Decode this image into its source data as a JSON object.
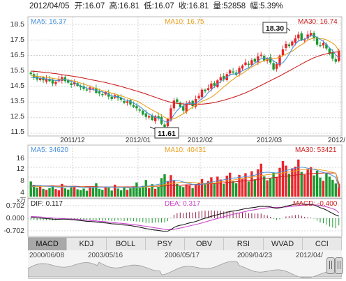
{
  "header": {
    "date": "2012/04/05",
    "open_label": "开:",
    "open": "16.07",
    "high_label": "高:",
    "high": "16.81",
    "low_label": "低:",
    "low": "16.07",
    "close_label": "收:",
    "close": "16.81",
    "volume_label": "量:",
    "volume": "52858",
    "change_label": "幅:",
    "change": "5.39%"
  },
  "price_panel": {
    "ma5_label": "MA5: 16.37",
    "ma10_label": "MA10: 16.75",
    "ma30_label": "MA30: 16.74",
    "high_callout": "18.30",
    "low_callout": "11.61",
    "y_ticks": [
      "18.5",
      "17.5",
      "16.5",
      "15.5",
      "14.5",
      "13.5",
      "12.5",
      "11.5"
    ],
    "x_ticks": [
      "2011/12",
      "2012/01",
      "2012/02",
      "2012/03",
      "2012/"
    ]
  },
  "volume_panel": {
    "ma5_label": "MA5: 34620",
    "ma10_label": "MA10: 40431",
    "ma30_label": "MA30: 53421",
    "y_ticks": [
      "16",
      "12",
      "8",
      "4"
    ],
    "unit": "x万"
  },
  "macd_panel": {
    "dif_label": "DIF: 0.117",
    "dea_label": "DEA: 0.317",
    "macd_label": "MACD: -0.400",
    "y_ticks": [
      "0.702",
      "0.000",
      "-0.702"
    ]
  },
  "tabs": [
    "MACD",
    "KDJ",
    "BOLL",
    "PSY",
    "OBV",
    "RSI",
    "WVAD",
    "CCI"
  ],
  "active_tab": 0,
  "navigator": {
    "dates": [
      "2000/06/08",
      "2003/05/16",
      "2006/05/17",
      "2009/04/23",
      "2012/04/"
    ]
  },
  "colors": {
    "up": "#e8262b",
    "down": "#1a9a2e",
    "ma5": "#4a90d9",
    "ma10": "#e8a020",
    "ma30": "#cc2222",
    "dif": "#1a1a1a",
    "dea": "#cc44cc",
    "grid": "#c8c8c8"
  },
  "chart_data": [
    {
      "type": "candlestick",
      "title": "",
      "xlabel": "",
      "ylabel": "",
      "ylim": [
        11.5,
        18.6
      ],
      "x_tick_labels": [
        "2011/12",
        "2012/01",
        "2012/02",
        "2012/03",
        "2012/"
      ],
      "y_ticks": [
        11.5,
        12.5,
        13.5,
        14.5,
        15.5,
        16.5,
        17.5,
        18.5
      ],
      "annotations": [
        {
          "label": "18.30",
          "value": 18.3
        },
        {
          "label": "11.61",
          "value": 11.61
        }
      ],
      "close": [
        15.3,
        15.1,
        14.95,
        15.05,
        14.9,
        15.0,
        14.85,
        14.7,
        14.8,
        14.95,
        15.1,
        14.85,
        14.75,
        14.6,
        14.8,
        14.55,
        14.45,
        14.35,
        14.25,
        14.45,
        14.4,
        14.1,
        14.05,
        13.95,
        14.15,
        13.85,
        13.7,
        13.95,
        13.75,
        13.65,
        13.45,
        13.55,
        13.35,
        13.2,
        13.1,
        12.95,
        12.7,
        12.55,
        12.6,
        12.35,
        12.6,
        12.45,
        12.1,
        11.9,
        12.4,
        13.1,
        13.6,
        13.5,
        13.2,
        12.95,
        13.4,
        13.5,
        13.25,
        13.7,
        13.9,
        14.3,
        14.2,
        14.4,
        14.7,
        14.55,
        14.9,
        15.1,
        14.95,
        15.3,
        15.55,
        15.4,
        15.25,
        15.7,
        15.85,
        16.05,
        15.9,
        16.2,
        16.1,
        16.45,
        16.55,
        16.15,
        16.3,
        16.05,
        15.6,
        15.95,
        16.5,
        16.9,
        17.25,
        17.1,
        17.4,
        17.6,
        17.85,
        17.5,
        17.55,
        17.85,
        17.95,
        17.6,
        17.2,
        17.1,
        17.3,
        16.95,
        16.6,
        16.3,
        16.1,
        16.81
      ],
      "ma5": [
        15.1,
        15.08,
        15.06,
        15.04,
        15.02,
        15.0,
        14.97,
        14.93,
        14.89,
        14.9,
        14.93,
        14.94,
        14.91,
        14.83,
        14.74,
        14.64,
        14.55,
        14.47,
        14.39,
        14.34,
        14.3,
        14.26,
        14.21,
        14.16,
        14.09,
        14.0,
        13.9,
        13.86,
        13.83,
        13.8,
        13.66,
        13.61,
        13.54,
        13.45,
        13.32,
        13.22,
        13.05,
        12.88,
        12.73,
        12.62,
        12.51,
        12.48,
        12.36,
        12.26,
        12.2,
        12.35,
        12.7,
        12.95,
        13.16,
        13.23,
        13.4,
        13.43,
        13.38,
        13.41,
        13.56,
        13.72,
        13.86,
        14.12,
        14.28,
        14.5,
        14.66,
        14.82,
        14.98,
        15.1,
        15.28,
        15.3,
        15.32,
        15.4,
        15.52,
        15.62,
        15.7,
        15.86,
        16.0,
        16.15,
        16.3,
        16.34,
        16.32,
        16.3,
        16.16,
        15.99,
        15.99,
        16.03,
        16.28,
        16.58,
        16.94,
        17.23,
        17.43,
        17.49,
        17.53,
        17.68,
        17.79,
        17.77,
        17.66,
        17.53,
        17.42,
        17.2,
        16.99,
        16.8,
        16.54,
        16.37
      ],
      "ma10": [
        15.2,
        15.18,
        15.16,
        15.14,
        15.12,
        15.1,
        15.07,
        15.03,
        15.0,
        14.98,
        14.96,
        14.94,
        14.92,
        14.89,
        14.85,
        14.79,
        14.72,
        14.66,
        14.59,
        14.52,
        14.44,
        14.38,
        14.31,
        14.24,
        14.2,
        14.14,
        14.07,
        14.02,
        13.97,
        13.91,
        13.84,
        13.76,
        13.7,
        13.64,
        13.57,
        13.48,
        13.35,
        13.22,
        13.11,
        12.99,
        12.89,
        12.77,
        12.64,
        12.52,
        12.44,
        12.4,
        12.43,
        12.52,
        12.64,
        12.75,
        12.87,
        13.05,
        13.17,
        13.3,
        13.42,
        13.55,
        13.62,
        13.71,
        13.82,
        13.96,
        14.12,
        14.3,
        14.49,
        14.63,
        14.81,
        14.96,
        15.11,
        15.23,
        15.34,
        15.49,
        15.63,
        15.75,
        15.87,
        16.0,
        16.09,
        16.17,
        16.24,
        16.31,
        16.33,
        16.33,
        16.39,
        16.49,
        16.58,
        16.68,
        16.77,
        16.92,
        17.07,
        17.2,
        17.34,
        17.49,
        17.56,
        17.62,
        17.62,
        17.58,
        17.57,
        17.51,
        17.4,
        17.29,
        17.13,
        16.75
      ],
      "ma30": [
        15.5,
        15.48,
        15.46,
        15.44,
        15.42,
        15.4,
        15.38,
        15.35,
        15.33,
        15.3,
        15.27,
        15.24,
        15.21,
        15.18,
        15.15,
        15.12,
        15.08,
        15.04,
        15.0,
        14.96,
        14.92,
        14.88,
        14.84,
        14.8,
        14.76,
        14.71,
        14.66,
        14.61,
        14.56,
        14.51,
        14.45,
        14.39,
        14.33,
        14.27,
        14.21,
        14.15,
        14.09,
        14.02,
        13.95,
        13.88,
        13.81,
        13.74,
        13.67,
        13.6,
        13.54,
        13.49,
        13.45,
        13.42,
        13.4,
        13.38,
        13.37,
        13.36,
        13.35,
        13.35,
        13.36,
        13.37,
        13.39,
        13.41,
        13.44,
        13.48,
        13.52,
        13.57,
        13.62,
        13.68,
        13.74,
        13.8,
        13.87,
        13.94,
        14.02,
        14.1,
        14.19,
        14.28,
        14.38,
        14.48,
        14.58,
        14.68,
        14.78,
        14.88,
        14.98,
        15.08,
        15.18,
        15.29,
        15.4,
        15.51,
        15.62,
        15.73,
        15.84,
        15.95,
        16.06,
        16.16,
        16.26,
        16.35,
        16.43,
        16.5,
        16.56,
        16.61,
        16.65,
        16.69,
        16.72,
        16.74
      ]
    },
    {
      "type": "bar",
      "title": "",
      "unit": "x万",
      "ylim": [
        0,
        16
      ],
      "y_ticks": [
        4,
        8,
        12,
        16
      ],
      "values": [
        6.2,
        4.8,
        3.6,
        4.1,
        3.2,
        2.8,
        3.5,
        4.6,
        3.1,
        2.6,
        5.2,
        3.4,
        2.9,
        3.8,
        4.4,
        3.0,
        2.7,
        3.3,
        2.4,
        4.0,
        3.6,
        5.5,
        3.2,
        2.8,
        4.1,
        3.7,
        2.5,
        4.9,
        3.3,
        2.6,
        3.9,
        2.8,
        3.4,
        4.2,
        5.8,
        3.6,
        4.4,
        6.8,
        3.5,
        5.1,
        3.2,
        4.0,
        7.6,
        9.2,
        6.4,
        8.8,
        6.5,
        5.2,
        4.3,
        3.9,
        5.0,
        4.6,
        3.5,
        4.8,
        5.6,
        7.2,
        5.0,
        6.4,
        7.9,
        5.3,
        8.2,
        7.0,
        5.2,
        8.6,
        9.8,
        6.3,
        5.5,
        8.9,
        7.4,
        9.6,
        6.2,
        10.4,
        7.1,
        11.2,
        13.5,
        8.3,
        6.7,
        7.4,
        9.9,
        8.1,
        11.8,
        14.6,
        12.7,
        9.4,
        11.6,
        12.3,
        15.2,
        10.1,
        9.0,
        11.3,
        12.1,
        8.7,
        10.6,
        7.8,
        6.5,
        9.8,
        8.2,
        6.9,
        5.4,
        5.3
      ],
      "ma5": [
        4.2,
        4.3,
        4.4,
        4.5,
        4.4,
        4.3,
        4.2,
        4.1,
        4.0,
        3.9,
        3.9,
        4.0,
        4.0,
        4.1,
        4.1,
        4.0,
        3.9,
        3.8,
        3.7,
        3.8,
        3.8,
        3.9,
        3.9,
        3.9,
        4.0,
        4.0,
        3.9,
        3.9,
        3.8,
        3.8,
        3.8,
        3.7,
        3.7,
        3.8,
        3.9,
        4.0,
        4.1,
        4.3,
        4.4,
        4.6,
        4.8,
        5.0,
        5.4,
        5.9,
        6.2,
        6.5,
        6.7,
        6.6,
        6.4,
        6.0,
        5.6,
        5.3,
        5.0,
        4.9,
        4.9,
        5.1,
        5.3,
        5.6,
        5.9,
        6.2,
        6.5,
        6.7,
        6.9,
        7.1,
        7.4,
        7.6,
        7.7,
        7.9,
        8.0,
        8.2,
        8.4,
        8.6,
        8.8,
        9.2,
        9.7,
        9.9,
        10.0,
        9.9,
        9.8,
        9.7,
        9.9,
        10.3,
        10.7,
        11.0,
        11.3,
        11.6,
        12.0,
        12.1,
        11.9,
        11.6,
        11.4,
        11.2,
        10.8,
        10.3,
        9.9,
        9.6,
        9.2,
        8.6,
        7.9,
        3.5
      ],
      "ma10": [
        4.0,
        4.1,
        4.1,
        4.2,
        4.2,
        4.2,
        4.2,
        4.2,
        4.1,
        4.1,
        4.1,
        4.1,
        4.1,
        4.0,
        4.0,
        4.0,
        4.0,
        4.0,
        3.9,
        3.9,
        3.9,
        3.9,
        3.9,
        3.9,
        3.9,
        3.9,
        3.9,
        3.9,
        3.9,
        3.9,
        3.9,
        3.8,
        3.8,
        3.8,
        3.8,
        3.9,
        3.9,
        4.0,
        4.1,
        4.2,
        4.3,
        4.5,
        4.7,
        4.9,
        5.1,
        5.3,
        5.5,
        5.7,
        5.8,
        5.9,
        5.9,
        5.9,
        5.8,
        5.7,
        5.6,
        5.5,
        5.4,
        5.4,
        5.5,
        5.6,
        5.8,
        6.0,
        6.2,
        6.4,
        6.6,
        6.8,
        7.0,
        7.2,
        7.4,
        7.6,
        7.8,
        8.0,
        8.2,
        8.4,
        8.6,
        8.8,
        9.0,
        9.1,
        9.2,
        9.3,
        9.5,
        9.7,
        9.9,
        10.1,
        10.3,
        10.5,
        10.8,
        11.0,
        11.1,
        11.2,
        11.3,
        11.3,
        11.2,
        11.0,
        10.8,
        10.6,
        10.3,
        10.0,
        9.6,
        4.0
      ],
      "ma30": [
        4.5,
        4.5,
        4.5,
        4.5,
        4.4,
        4.4,
        4.4,
        4.4,
        4.3,
        4.3,
        4.3,
        4.3,
        4.2,
        4.2,
        4.2,
        4.2,
        4.1,
        4.1,
        4.1,
        4.1,
        4.1,
        4.1,
        4.0,
        4.0,
        4.0,
        4.0,
        4.0,
        4.0,
        4.0,
        4.0,
        4.0,
        4.0,
        4.0,
        4.0,
        4.0,
        4.0,
        4.1,
        4.1,
        4.1,
        4.2,
        4.2,
        4.3,
        4.3,
        4.4,
        4.5,
        4.5,
        4.6,
        4.7,
        4.7,
        4.8,
        4.8,
        4.9,
        4.9,
        5.0,
        5.0,
        5.1,
        5.2,
        5.2,
        5.3,
        5.4,
        5.5,
        5.6,
        5.7,
        5.8,
        5.9,
        6.0,
        6.1,
        6.2,
        6.4,
        6.5,
        6.6,
        6.7,
        6.9,
        7.0,
        7.2,
        7.3,
        7.5,
        7.6,
        7.8,
        7.9,
        8.1,
        8.2,
        8.4,
        8.5,
        8.7,
        8.8,
        9.0,
        9.1,
        9.2,
        9.3,
        9.4,
        9.5,
        9.6,
        9.6,
        9.7,
        9.7,
        9.7,
        9.7,
        9.7,
        5.3
      ]
    },
    {
      "type": "line",
      "title": "",
      "ylim": [
        -0.8,
        0.8
      ],
      "y_ticks": [
        0.702,
        0.0,
        -0.702
      ],
      "series": [
        {
          "name": "DIF",
          "values": [
            0.05,
            0.04,
            0.02,
            0.01,
            0.0,
            -0.02,
            -0.03,
            -0.05,
            -0.06,
            -0.06,
            -0.05,
            -0.05,
            -0.06,
            -0.08,
            -0.09,
            -0.11,
            -0.13,
            -0.15,
            -0.17,
            -0.18,
            -0.19,
            -0.21,
            -0.23,
            -0.25,
            -0.26,
            -0.28,
            -0.31,
            -0.32,
            -0.33,
            -0.35,
            -0.38,
            -0.39,
            -0.41,
            -0.44,
            -0.47,
            -0.5,
            -0.54,
            -0.58,
            -0.61,
            -0.64,
            -0.66,
            -0.68,
            -0.71,
            -0.74,
            -0.72,
            -0.63,
            -0.52,
            -0.44,
            -0.39,
            -0.37,
            -0.31,
            -0.26,
            -0.23,
            -0.18,
            -0.12,
            -0.05,
            0.0,
            0.05,
            0.11,
            0.15,
            0.2,
            0.25,
            0.28,
            0.33,
            0.38,
            0.4,
            0.42,
            0.46,
            0.5,
            0.54,
            0.56,
            0.59,
            0.61,
            0.64,
            0.67,
            0.66,
            0.66,
            0.64,
            0.58,
            0.56,
            0.58,
            0.62,
            0.68,
            0.71,
            0.75,
            0.78,
            0.81,
            0.8,
            0.78,
            0.78,
            0.78,
            0.74,
            0.67,
            0.59,
            0.54,
            0.46,
            0.36,
            0.27,
            0.18,
            0.117
          ]
        },
        {
          "name": "DEA",
          "values": [
            0.1,
            0.09,
            0.08,
            0.07,
            0.06,
            0.04,
            0.03,
            0.01,
            0.0,
            -0.01,
            -0.02,
            -0.03,
            -0.03,
            -0.04,
            -0.05,
            -0.06,
            -0.08,
            -0.09,
            -0.11,
            -0.12,
            -0.14,
            -0.15,
            -0.17,
            -0.18,
            -0.2,
            -0.22,
            -0.23,
            -0.25,
            -0.27,
            -0.28,
            -0.3,
            -0.32,
            -0.34,
            -0.36,
            -0.38,
            -0.4,
            -0.43,
            -0.45,
            -0.48,
            -0.51,
            -0.54,
            -0.56,
            -0.59,
            -0.62,
            -0.64,
            -0.64,
            -0.62,
            -0.58,
            -0.55,
            -0.51,
            -0.47,
            -0.43,
            -0.39,
            -0.35,
            -0.31,
            -0.26,
            -0.21,
            -0.16,
            -0.11,
            -0.06,
            -0.01,
            0.04,
            0.09,
            0.13,
            0.18,
            0.22,
            0.26,
            0.3,
            0.34,
            0.38,
            0.42,
            0.45,
            0.48,
            0.51,
            0.54,
            0.56,
            0.58,
            0.6,
            0.6,
            0.61,
            0.61,
            0.62,
            0.63,
            0.65,
            0.67,
            0.69,
            0.71,
            0.73,
            0.74,
            0.75,
            0.76,
            0.75,
            0.74,
            0.71,
            0.68,
            0.64,
            0.59,
            0.53,
            0.46,
            0.317
          ]
        }
      ],
      "histogram": [
        -0.1,
        -0.1,
        -0.12,
        -0.12,
        -0.12,
        -0.12,
        -0.12,
        -0.12,
        -0.12,
        -0.1,
        -0.06,
        -0.04,
        -0.06,
        -0.08,
        -0.08,
        -0.1,
        -0.1,
        -0.12,
        -0.12,
        -0.12,
        -0.1,
        -0.12,
        -0.12,
        -0.14,
        -0.12,
        -0.12,
        -0.16,
        -0.14,
        -0.12,
        -0.14,
        -0.16,
        -0.14,
        -0.14,
        -0.16,
        -0.18,
        -0.2,
        -0.22,
        -0.26,
        -0.26,
        -0.26,
        -0.24,
        -0.24,
        -0.24,
        -0.24,
        -0.16,
        0.02,
        0.2,
        0.28,
        0.32,
        0.28,
        0.32,
        0.34,
        0.32,
        0.34,
        0.38,
        0.42,
        0.42,
        0.42,
        0.44,
        0.42,
        0.42,
        0.42,
        0.38,
        0.4,
        0.4,
        0.36,
        0.32,
        0.32,
        0.32,
        0.32,
        0.28,
        0.28,
        0.26,
        0.26,
        0.26,
        0.2,
        0.16,
        0.08,
        -0.04,
        -0.1,
        -0.06,
        0.0,
        0.1,
        0.12,
        0.16,
        0.18,
        0.2,
        0.14,
        0.08,
        0.06,
        0.04,
        -0.02,
        -0.14,
        -0.24,
        -0.28,
        -0.36,
        -0.46,
        -0.52,
        -0.56,
        -0.4
      ]
    }
  ]
}
